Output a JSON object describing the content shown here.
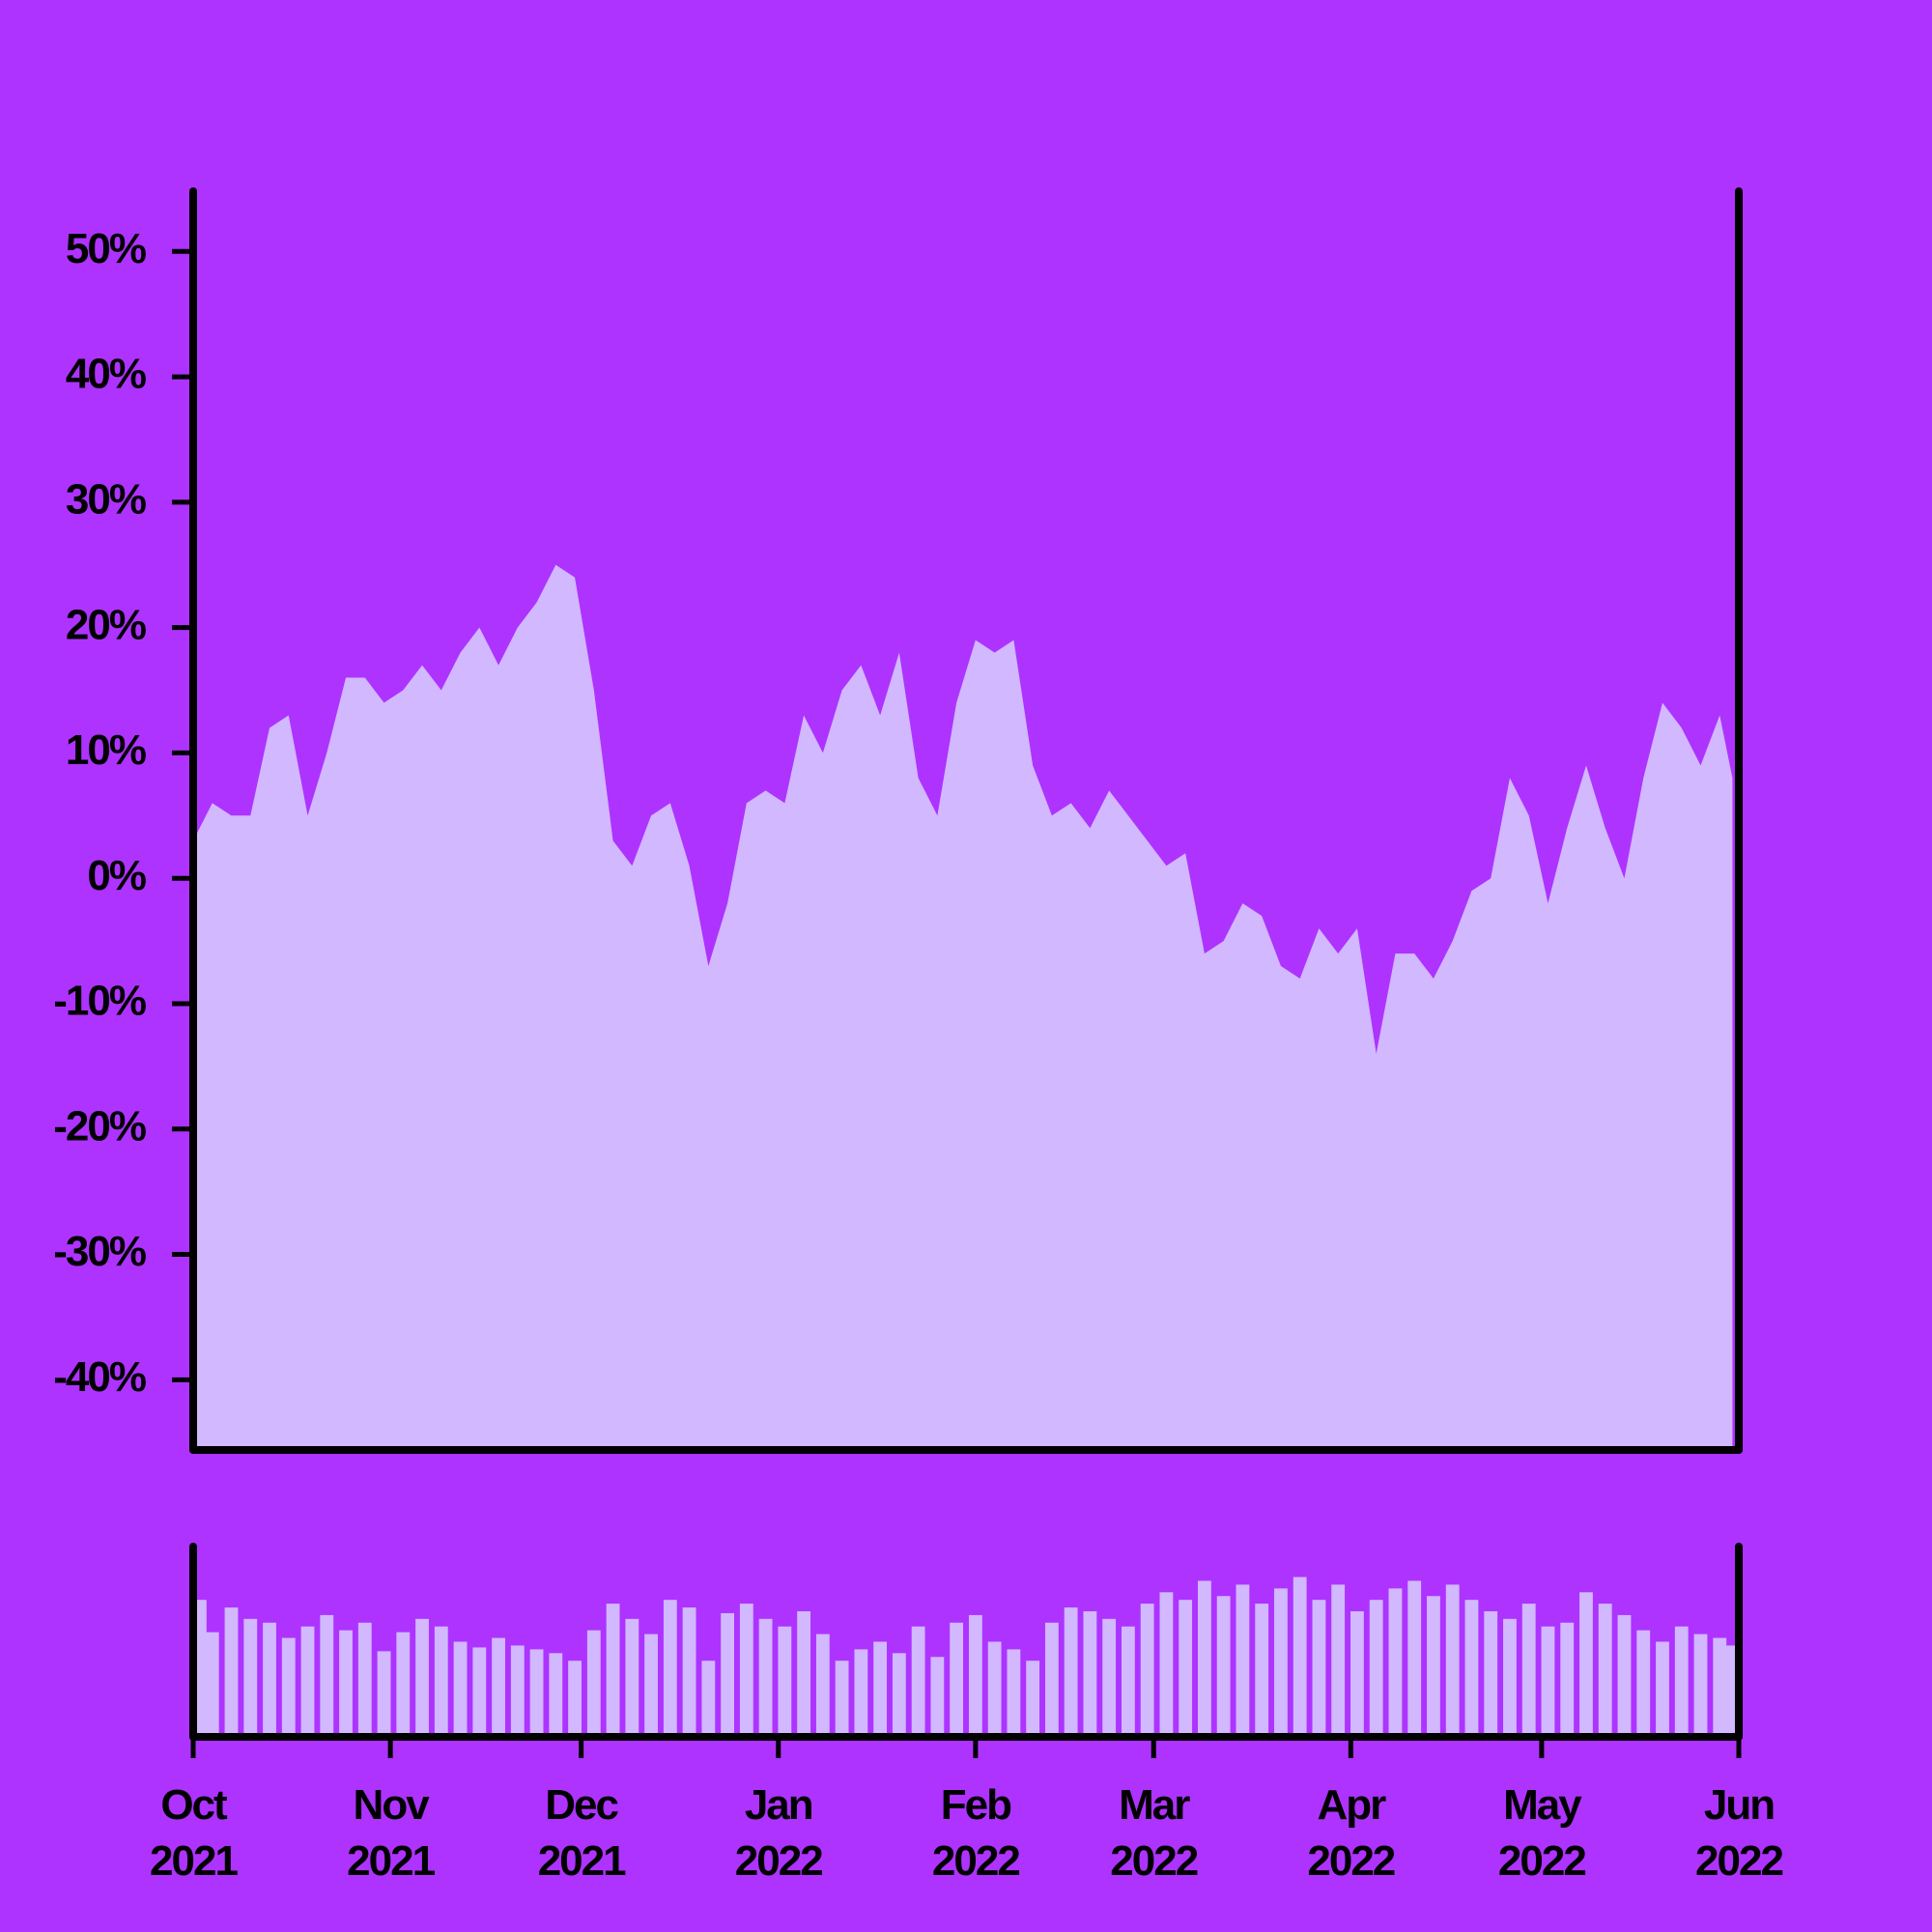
{
  "chart_data": [
    {
      "type": "area",
      "color": "#d1b8ff",
      "x": [
        0,
        3,
        6,
        9,
        12,
        15,
        18,
        21,
        24,
        27,
        30,
        33,
        36,
        39,
        42,
        45,
        48,
        51,
        54,
        57,
        60,
        63,
        66,
        69,
        72,
        75,
        78,
        81,
        84,
        87,
        90,
        93,
        96,
        99,
        102,
        105,
        108,
        111,
        114,
        117,
        120,
        123,
        126,
        129,
        132,
        135,
        138,
        141,
        144,
        147,
        150,
        153,
        156,
        159,
        162,
        165,
        168,
        171,
        174,
        177,
        180,
        183,
        186,
        189,
        192,
        195,
        198,
        201,
        204,
        207,
        210,
        213,
        216,
        219,
        222,
        225,
        228,
        231,
        234,
        237,
        240,
        242
      ],
      "values": [
        3,
        6,
        5,
        5,
        12,
        13,
        5,
        10,
        16,
        16,
        14,
        15,
        17,
        15,
        18,
        20,
        17,
        20,
        22,
        25,
        24,
        15,
        3,
        1,
        5,
        6,
        1,
        -7,
        -2,
        6,
        7,
        6,
        13,
        10,
        15,
        17,
        13,
        18,
        8,
        5,
        14,
        19,
        18,
        19,
        9,
        5,
        6,
        4,
        7,
        5,
        3,
        1,
        2,
        -6,
        -5,
        -2,
        -3,
        -7,
        -8,
        -4,
        -6,
        -4,
        -14,
        -6,
        -6,
        -8,
        -5,
        -1,
        0,
        8,
        5,
        -2,
        4,
        9,
        4,
        0,
        8,
        14,
        12,
        9,
        13,
        8
      ],
      "ylim": [
        -45.6,
        54.8
      ],
      "yticks": [
        {
          "value": -40,
          "label": "-40%"
        },
        {
          "value": -30,
          "label": "-30%"
        },
        {
          "value": -20,
          "label": "-20%"
        },
        {
          "value": -10,
          "label": "-10%"
        },
        {
          "value": 0,
          "label": "0%"
        },
        {
          "value": 10,
          "label": "10%"
        },
        {
          "value": 20,
          "label": "20%"
        },
        {
          "value": 30,
          "label": "30%"
        },
        {
          "value": 40,
          "label": "40%"
        },
        {
          "value": 50,
          "label": "50%"
        }
      ]
    },
    {
      "type": "bar",
      "color": "#d1b8ff",
      "x": [
        0,
        3,
        6,
        9,
        12,
        15,
        18,
        21,
        24,
        27,
        30,
        33,
        36,
        39,
        42,
        45,
        48,
        51,
        54,
        57,
        60,
        63,
        66,
        69,
        72,
        75,
        78,
        81,
        84,
        87,
        90,
        93,
        96,
        99,
        102,
        105,
        108,
        111,
        114,
        117,
        120,
        123,
        126,
        129,
        132,
        135,
        138,
        141,
        144,
        147,
        150,
        153,
        156,
        159,
        162,
        165,
        168,
        171,
        174,
        177,
        180,
        183,
        186,
        189,
        192,
        195,
        198,
        201,
        204,
        207,
        210,
        213,
        216,
        219,
        222,
        225,
        228,
        231,
        234,
        237,
        240,
        242
      ],
      "values": [
        72,
        55,
        68,
        62,
        60,
        52,
        58,
        64,
        56,
        60,
        45,
        55,
        62,
        58,
        50,
        47,
        52,
        48,
        46,
        44,
        40,
        56,
        70,
        62,
        54,
        72,
        68,
        40,
        65,
        70,
        62,
        58,
        66,
        54,
        40,
        46,
        50,
        44,
        58,
        42,
        60,
        64,
        50,
        46,
        40,
        60,
        68,
        66,
        62,
        58,
        70,
        76,
        72,
        82,
        74,
        80,
        70,
        78,
        84,
        72,
        80,
        66,
        72,
        78,
        82,
        74,
        80,
        72,
        66,
        62,
        70,
        58,
        60,
        76,
        70,
        64,
        56,
        50,
        58,
        54,
        52,
        48
      ],
      "ylim": [
        0,
        100
      ],
      "xlim": [
        0,
        243
      ],
      "xticks": [
        {
          "value": 0,
          "label": "Oct\n2021"
        },
        {
          "value": 31,
          "label": "Nov\n2021"
        },
        {
          "value": 61,
          "label": "Dec\n2021"
        },
        {
          "value": 92,
          "label": "Jan\n2022"
        },
        {
          "value": 123,
          "label": "Feb\n2022"
        },
        {
          "value": 151,
          "label": "Mar\n2022"
        },
        {
          "value": 182,
          "label": "Apr\n2022"
        },
        {
          "value": 212,
          "label": "May\n2022"
        },
        {
          "value": 243,
          "label": "Jun\n2022"
        }
      ]
    }
  ]
}
